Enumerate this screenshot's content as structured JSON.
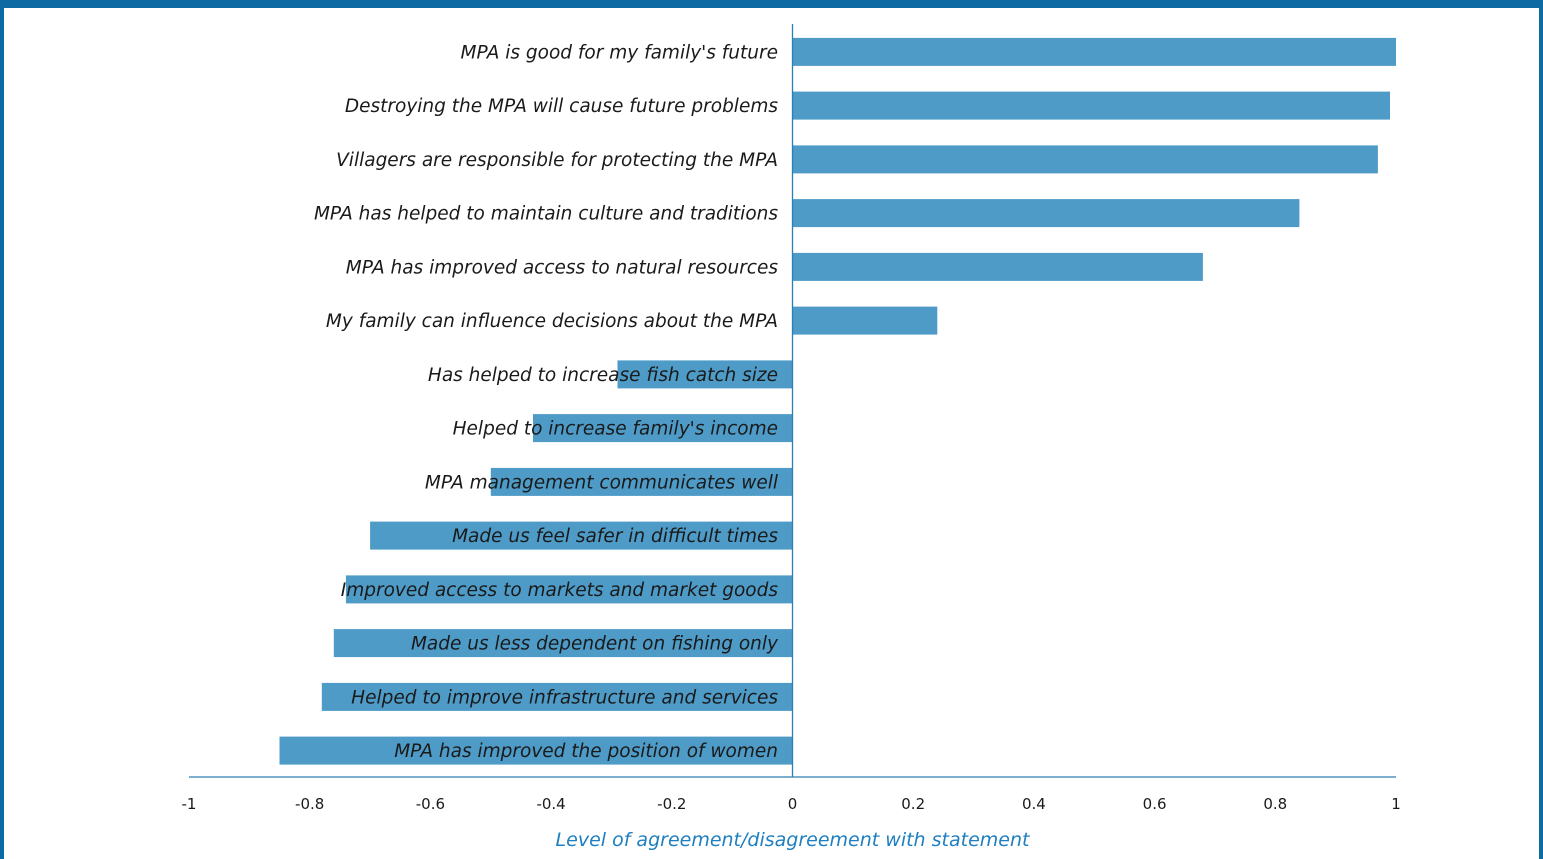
{
  "colors": {
    "frame": "#0e6aa3",
    "bar": "#4e9bc7",
    "axis": "#2a7fb3",
    "axis_title": "#1e7fc0",
    "text": "#1a1a1a"
  },
  "chart_data": {
    "type": "bar",
    "orientation": "horizontal",
    "categories": [
      "MPA is good for my family's future",
      "Destroying the MPA will cause future problems",
      "Villagers are responsible for protecting the MPA",
      "MPA has helped to maintain culture and traditions",
      "MPA has improved access to natural resources",
      "My family can influence decisions about the MPA",
      "Has helped to increase fish catch size",
      "Helped to increase family's income",
      "MPA management communicates well",
      "Made us feel safer in difficult times",
      "Improved access to markets and market goods",
      "Made us less dependent on fishing only",
      "Helped to improve infrastructure and services",
      "MPA has improved the position of women"
    ],
    "values": [
      1.0,
      0.99,
      0.97,
      0.84,
      0.68,
      0.24,
      -0.29,
      -0.43,
      -0.5,
      -0.7,
      -0.74,
      -0.76,
      -0.78,
      -0.85
    ],
    "xlim": [
      -1,
      1
    ],
    "xticks": [
      "-1",
      "-0.8",
      "-0.6",
      "-0.4",
      "-0.2",
      "0",
      "0.2",
      "0.4",
      "0.6",
      "0.8",
      "1"
    ],
    "xtick_values": [
      -1,
      -0.8,
      -0.6,
      -0.4,
      -0.2,
      0,
      0.2,
      0.4,
      0.6,
      0.8,
      1
    ],
    "xlabel": "Level of agreement/disagreement with statement",
    "ylabel": "",
    "title": "",
    "grid": false,
    "legend": "none"
  }
}
